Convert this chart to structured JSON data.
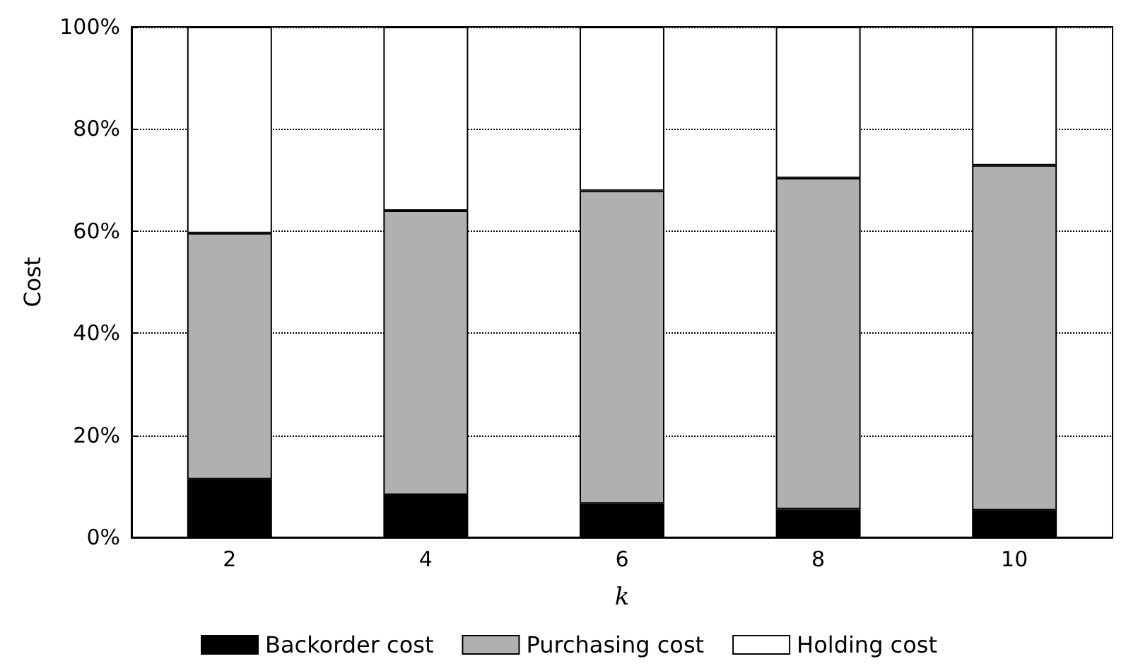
{
  "chart_data": {
    "type": "bar",
    "stacked": true,
    "xlabel": "k",
    "ylabel": "Cost",
    "categories": [
      "2",
      "4",
      "6",
      "8",
      "10"
    ],
    "series": [
      {
        "name": "Backorder cost",
        "color": "#000000",
        "values": [
          11.4,
          8.3,
          6.6,
          5.5,
          5.3
        ]
      },
      {
        "name": "Purchasing cost",
        "color": "#b0b0b0",
        "values": [
          48.2,
          55.7,
          61.3,
          64.9,
          67.6
        ]
      },
      {
        "name": "Holding cost",
        "color": "#ffffff",
        "values": [
          40.4,
          36.0,
          32.1,
          29.6,
          27.1
        ]
      }
    ],
    "ylim": [
      0,
      100
    ],
    "yticks": [
      {
        "value": 0,
        "label": "0%"
      },
      {
        "value": 20,
        "label": "20%"
      },
      {
        "value": 40,
        "label": "40%"
      },
      {
        "value": 60,
        "label": "60%"
      },
      {
        "value": 80,
        "label": "80%"
      },
      {
        "value": 100,
        "label": "100%"
      }
    ],
    "grid": "y",
    "legend": "bottom"
  }
}
